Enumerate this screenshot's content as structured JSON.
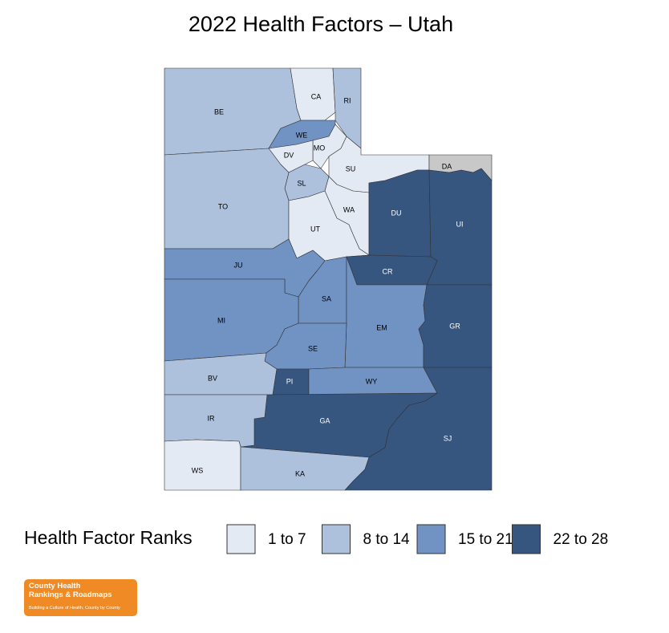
{
  "title": "2022 Health Factors – Utah",
  "legend": {
    "title": "Health Factor Ranks",
    "items": [
      {
        "label": "1 to 7",
        "color": "#e4eaf3"
      },
      {
        "label": "8 to 14",
        "color": "#adc0dc"
      },
      {
        "label": "15 to 21",
        "color": "#7093c3"
      },
      {
        "label": "22 to 28",
        "color": "#36557f"
      }
    ]
  },
  "counties": [
    {
      "label": "BE",
      "color": "#adc0dc"
    },
    {
      "label": "CA",
      "color": "#e4eaf3"
    },
    {
      "label": "RI",
      "color": "#adc0dc"
    },
    {
      "label": "WE",
      "color": "#7093c3"
    },
    {
      "label": "MO",
      "color": "#e4eaf3"
    },
    {
      "label": "DV",
      "color": "#e4eaf3"
    },
    {
      "label": "SU",
      "color": "#e4eaf3"
    },
    {
      "label": "SL",
      "color": "#adc0dc"
    },
    {
      "label": "WA",
      "color": "#e4eaf3"
    },
    {
      "label": "TO",
      "color": "#adc0dc"
    },
    {
      "label": "UT",
      "color": "#e4eaf3"
    },
    {
      "label": "DU",
      "color": "#36557f"
    },
    {
      "label": "DA",
      "color": "#c8c8c8"
    },
    {
      "label": "UI",
      "color": "#36557f"
    },
    {
      "label": "JU",
      "color": "#7093c3"
    },
    {
      "label": "CR",
      "color": "#36557f"
    },
    {
      "label": "SA",
      "color": "#7093c3"
    },
    {
      "label": "MI",
      "color": "#7093c3"
    },
    {
      "label": "EM",
      "color": "#7093c3"
    },
    {
      "label": "GR",
      "color": "#36557f"
    },
    {
      "label": "SE",
      "color": "#7093c3"
    },
    {
      "label": "BV",
      "color": "#adc0dc"
    },
    {
      "label": "PI",
      "color": "#36557f"
    },
    {
      "label": "WY",
      "color": "#7093c3"
    },
    {
      "label": "GA",
      "color": "#36557f"
    },
    {
      "label": "IR",
      "color": "#adc0dc"
    },
    {
      "label": "WS",
      "color": "#e4eaf3"
    },
    {
      "label": "KA",
      "color": "#adc0dc"
    },
    {
      "label": "SJ",
      "color": "#36557f"
    }
  ],
  "logo": {
    "line1": "County Health",
    "line2": "Rankings & Roadmaps",
    "tagline": "Building a Culture of Health, County by County"
  }
}
